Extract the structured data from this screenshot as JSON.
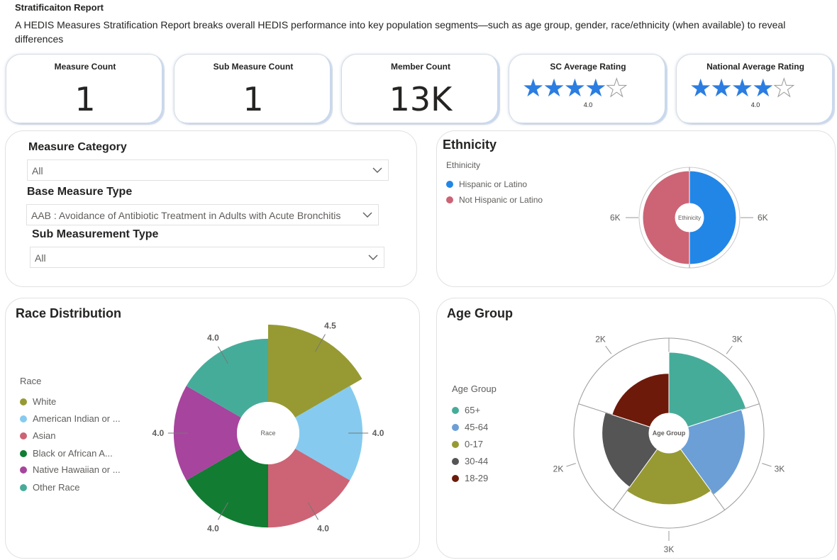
{
  "header": {
    "title": "Stratificaiton Report",
    "description": "A HEDIS Measures Stratification Report breaks overall HEDIS performance into key population segments—such as age group, gender, race/ethnicity (when available) to reveal differences"
  },
  "cards": {
    "measure_count": {
      "label": "Measure Count",
      "value": "1"
    },
    "sub_measure_count": {
      "label": "Sub Measure Count",
      "value": "1"
    },
    "member_count": {
      "label": "Member Count",
      "value": "13K"
    },
    "sc_rating": {
      "label": "SC Average Rating",
      "value": "4.0",
      "stars": 4
    },
    "national_rating": {
      "label": "National Average Rating",
      "value": "4.0",
      "stars": 4
    }
  },
  "filters": {
    "measure_category": {
      "label": "Measure Category",
      "value": "All"
    },
    "base_measure_type": {
      "label": "Base Measure Type",
      "value": "AAB : Avoidance of Antibiotic Treatment in Adults with Acute Bronchitis"
    },
    "sub_measurement_type": {
      "label": "Sub Measurement Type",
      "value": "All"
    }
  },
  "colors": {
    "accent": "#2b7de1",
    "white": "#979a32",
    "american_indian": "#86cbef",
    "asian": "#cc6475",
    "black": "#127c33",
    "native_hawaiian": "#a7449d",
    "other_race": "#46ac9a",
    "hispanic": "#2286e6",
    "not_hispanic": "#cc6475",
    "age_65": "#46ac9a",
    "age_45": "#6b9fd6",
    "age_0": "#979a32",
    "age_30": "#555555",
    "age_18": "#6d1a0a"
  },
  "ethnicity": {
    "title": "Ethnicity",
    "legend_title": "Ethinicity",
    "center_label": "Ethinicity",
    "chart_data": {
      "type": "pie",
      "categories": [
        "Hispanic or Latino",
        "Not Hispanic or Latino"
      ],
      "values": [
        6,
        6
      ],
      "data_labels": [
        "6K",
        "6K"
      ],
      "legend_position": "top-left"
    }
  },
  "race": {
    "title": "Race Distribution",
    "legend_title": "Race",
    "center_label": "Race",
    "legend_items": [
      "White",
      "American Indian or ...",
      "Asian",
      "Black or African A...",
      "Native Hawaiian or ...",
      "Other Race"
    ],
    "chart_data": {
      "type": "pie",
      "categories": [
        "White",
        "American Indian or ...",
        "Asian",
        "Black or African A...",
        "Native Hawaiian or ...",
        "Other Race"
      ],
      "values": [
        4.5,
        4.0,
        4.0,
        4.0,
        4.0,
        4.0
      ],
      "data_labels": [
        "4.5",
        "4.0",
        "4.0",
        "4.0",
        "4.0",
        "4.0"
      ],
      "legend_position": "left"
    }
  },
  "age": {
    "title": "Age Group",
    "legend_title": "Age Group",
    "center_label": "Age Group",
    "legend_items": [
      "65+",
      "45-64",
      "0-17",
      "30-44",
      "18-29"
    ],
    "chart_data": {
      "type": "pie",
      "categories": [
        "65+",
        "45-64",
        "0-17",
        "30-44",
        "18-29"
      ],
      "values": [
        2.6,
        2.4,
        2.2,
        2.0,
        1.7
      ],
      "max_labels": [
        "3K",
        "3K",
        "3K",
        "2K",
        "2K"
      ],
      "legend_position": "left"
    }
  }
}
